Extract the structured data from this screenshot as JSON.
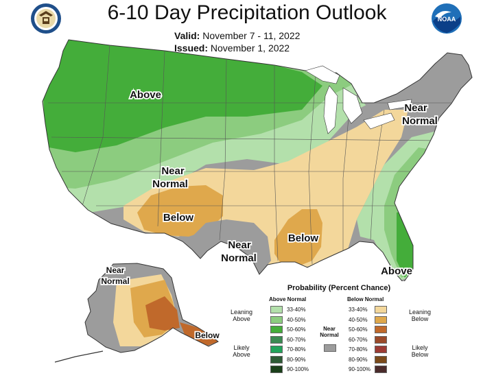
{
  "title": "6-10 Day Precipitation Outlook",
  "valid_label": "Valid:",
  "valid_value": "November 7 - 11, 2022",
  "issued_label": "Issued:",
  "issued_value": "November 1, 2022",
  "noaa_logo_text": "NOAA",
  "map_labels": {
    "above_north": "Above",
    "near_normal_west_1": "Near",
    "near_normal_west_2": "Normal",
    "below_southwest": "Below",
    "near_normal_texas_1": "Near",
    "near_normal_texas_2": "Normal",
    "below_gulf": "Below",
    "near_normal_ne_1": "Near",
    "near_normal_ne_2": "Normal",
    "above_florida": "Above",
    "near_normal_ak_1": "Near",
    "near_normal_ak_2": "Normal",
    "below_ak": "Below"
  },
  "legend": {
    "title": "Probability (Percent Chance)",
    "above_header": "Above Normal",
    "below_header": "Below Normal",
    "leaning_above": "Leaning Above",
    "likely_above": "Likely Above",
    "near_normal": "Near Normal",
    "leaning_below": "Leaning Below",
    "likely_below": "Likely Below",
    "above_bins": [
      {
        "label": "33-40%",
        "color": "#b3e0ab"
      },
      {
        "label": "40-50%",
        "color": "#8ccc7f"
      },
      {
        "label": "50-60%",
        "color": "#44ad3a"
      },
      {
        "label": "60-70%",
        "color": "#3b8a52"
      },
      {
        "label": "70-80%",
        "color": "#22a35a"
      },
      {
        "label": "80-90%",
        "color": "#2e5a35"
      },
      {
        "label": "90-100%",
        "color": "#1b3f1a"
      }
    ],
    "near_color": "#9c9c9c",
    "below_bins": [
      {
        "label": "33-40%",
        "color": "#f3d79b"
      },
      {
        "label": "40-50%",
        "color": "#dfa84c"
      },
      {
        "label": "50-60%",
        "color": "#c0692b"
      },
      {
        "label": "60-70%",
        "color": "#9a4a2a"
      },
      {
        "label": "70-80%",
        "color": "#9c3b34"
      },
      {
        "label": "80-90%",
        "color": "#7a4a1a"
      },
      {
        "label": "90-100%",
        "color": "#4a2b2b"
      }
    ]
  }
}
